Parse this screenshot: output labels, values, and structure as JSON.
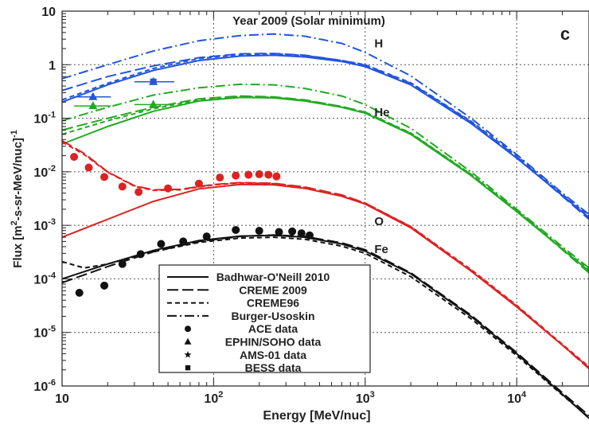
{
  "chart_data": {
    "type": "line",
    "title": "Year 2009 (Solar minimum)",
    "panel_label": "c",
    "xlabel": "Energy [MeV/nuc]",
    "ylabel": "Flux [m",
    "ylabel_sup1": "2",
    "ylabel_mid": "-s-sr-MeV/nuc]",
    "ylabel_sup2": "-1",
    "xscale": "log",
    "yscale": "log",
    "xlim": [
      10,
      30000
    ],
    "ylim": [
      1e-06,
      10
    ],
    "grid": true,
    "legend_position": "bottom-left",
    "x_ticks": [
      {
        "value": 10,
        "base": "10",
        "exp": ""
      },
      {
        "value": 100,
        "base": "10",
        "exp": "2"
      },
      {
        "value": 1000,
        "base": "10",
        "exp": "3"
      },
      {
        "value": 10000,
        "base": "10",
        "exp": "4"
      }
    ],
    "y_ticks": [
      {
        "value": 10,
        "base": "10",
        "exp": ""
      },
      {
        "value": 1,
        "base": "1",
        "exp": ""
      },
      {
        "value": 0.1,
        "base": "10",
        "exp": "-1"
      },
      {
        "value": 0.01,
        "base": "10",
        "exp": "-2"
      },
      {
        "value": 0.001,
        "base": "10",
        "exp": "-3"
      },
      {
        "value": 0.0001,
        "base": "10",
        "exp": "-4"
      },
      {
        "value": 1e-05,
        "base": "10",
        "exp": "-5"
      },
      {
        "value": 1e-06,
        "base": "10",
        "exp": "-6"
      }
    ],
    "species": [
      {
        "label": "H",
        "color": "#2255dd",
        "label_x": 1150,
        "label_y": 2.5,
        "series": [
          {
            "model": "Badhwar-O'Neill 2010",
            "style": "solid",
            "x": [
              10,
              20,
              40,
              80,
              150,
              250,
              400,
              700,
              1000,
              2000,
              5000,
              10000,
              20000,
              30000
            ],
            "y": [
              0.2,
              0.42,
              0.78,
              1.2,
              1.45,
              1.5,
              1.4,
              1.15,
              0.92,
              0.42,
              0.08,
              0.018,
              0.0036,
              0.0014
            ]
          },
          {
            "model": "CREME 2009",
            "style": "long-dash",
            "x": [
              10,
              20,
              40,
              80,
              150,
              250,
              400,
              700,
              1000,
              2000,
              5000,
              10000,
              20000,
              30000
            ],
            "y": [
              0.33,
              0.6,
              0.95,
              1.35,
              1.6,
              1.62,
              1.5,
              1.2,
              0.98,
              0.45,
              0.085,
              0.019,
              0.0035,
              0.0013
            ]
          },
          {
            "model": "CREME96",
            "style": "short-dash",
            "x": [
              10,
              20,
              40,
              80,
              150,
              250,
              400,
              700,
              1000,
              2000,
              5000,
              10000,
              20000,
              30000
            ],
            "y": [
              0.22,
              0.45,
              0.85,
              1.3,
              1.55,
              1.6,
              1.48,
              1.2,
              1.0,
              0.46,
              0.088,
              0.02,
              0.0038,
              0.0015
            ]
          },
          {
            "model": "Burger-Usoskin",
            "style": "dash-dot",
            "x": [
              10,
              20,
              40,
              80,
              150,
              250,
              400,
              700,
              1000,
              2000,
              5000,
              10000,
              20000,
              30000
            ],
            "y": [
              0.55,
              1.0,
              1.8,
              2.8,
              3.5,
              3.75,
              3.4,
              2.5,
              1.7,
              0.62,
              0.1,
              0.021,
              0.004,
              0.0016
            ]
          }
        ],
        "points": [
          {
            "set": "EPHIN/SOHO data",
            "marker": "triangle",
            "x": [
              16,
              40
            ],
            "y": [
              0.25,
              0.48
            ],
            "xerr_low": [
              12,
              30
            ],
            "xerr_high": [
              21,
              55
            ]
          },
          {
            "set": "BESS data",
            "marker": "square",
            "x": [
              40
            ],
            "y": [
              0.48
            ]
          }
        ]
      },
      {
        "label": "He",
        "color": "#22aa22",
        "label_x": 1150,
        "label_y": 0.13,
        "series": [
          {
            "model": "Badhwar-O'Neill 2010",
            "style": "solid",
            "x": [
              10,
              20,
              40,
              80,
              150,
              250,
              400,
              700,
              1000,
              2000,
              5000,
              10000,
              20000,
              30000
            ],
            "y": [
              0.033,
              0.07,
              0.135,
              0.21,
              0.245,
              0.24,
              0.21,
              0.16,
              0.125,
              0.05,
              0.0085,
              0.0018,
              0.00036,
              0.00014
            ]
          },
          {
            "model": "CREME 2009",
            "style": "long-dash",
            "x": [
              10,
              20,
              40,
              80,
              150,
              250,
              400,
              700,
              1000,
              2000,
              5000,
              10000,
              20000,
              30000
            ],
            "y": [
              0.06,
              0.1,
              0.16,
              0.23,
              0.26,
              0.25,
              0.22,
              0.165,
              0.13,
              0.052,
              0.0088,
              0.0019,
              0.00035,
              0.00013
            ]
          },
          {
            "model": "CREME96",
            "style": "short-dash",
            "x": [
              10,
              20,
              40,
              80,
              150,
              250,
              400,
              700,
              1000,
              2000,
              5000,
              10000,
              20000,
              30000
            ],
            "y": [
              0.05,
              0.09,
              0.15,
              0.22,
              0.255,
              0.245,
              0.215,
              0.165,
              0.13,
              0.053,
              0.009,
              0.0019,
              0.00037,
              0.00015
            ]
          },
          {
            "model": "Burger-Usoskin",
            "style": "dash-dot",
            "x": [
              10,
              20,
              40,
              80,
              150,
              250,
              400,
              700,
              1000,
              2000,
              5000,
              10000,
              20000,
              30000
            ],
            "y": [
              0.09,
              0.16,
              0.27,
              0.37,
              0.43,
              0.42,
              0.36,
              0.26,
              0.18,
              0.065,
              0.01,
              0.002,
              0.0004,
              0.00016
            ]
          }
        ],
        "points": [
          {
            "set": "EPHIN/SOHO data",
            "marker": "triangle",
            "x": [
              16,
              40
            ],
            "y": [
              0.17,
              0.18
            ],
            "xerr_low": [
              12,
              30
            ],
            "xerr_high": [
              21,
              55
            ]
          }
        ]
      },
      {
        "label": "O",
        "color": "#dd2222",
        "label_x": 1150,
        "label_y": 0.0012,
        "series": [
          {
            "model": "Badhwar-O'Neill 2010",
            "style": "solid",
            "x": [
              10,
              20,
              40,
              80,
              150,
              250,
              400,
              700,
              1000,
              2000,
              5000,
              10000,
              20000,
              30000
            ],
            "y": [
              0.0006,
              0.0013,
              0.0028,
              0.0048,
              0.0058,
              0.0057,
              0.0049,
              0.0035,
              0.0025,
              0.0009,
              0.00014,
              3e-05,
              5.8e-06,
              2.2e-06
            ]
          },
          {
            "model": "CREME 2009",
            "style": "long-dash",
            "x": [
              10,
              14,
              20,
              30,
              40,
              60,
              100,
              150,
              250,
              400,
              700,
              1000,
              2000,
              5000,
              10000,
              20000,
              30000
            ],
            "y": [
              0.038,
              0.022,
              0.01,
              0.0055,
              0.0046,
              0.0047,
              0.0058,
              0.0063,
              0.0061,
              0.0052,
              0.0037,
              0.0026,
              0.00094,
              0.000145,
              3.1e-05,
              5.8e-06,
              2.1e-06
            ]
          },
          {
            "model": "CREME96",
            "style": "short-dash",
            "x": [
              10,
              14,
              20,
              30,
              40,
              60,
              100,
              150,
              250,
              400,
              700,
              1000,
              2000,
              5000,
              10000,
              20000,
              30000
            ],
            "y": [
              0.036,
              0.021,
              0.0098,
              0.0054,
              0.0045,
              0.0046,
              0.0057,
              0.0062,
              0.006,
              0.0051,
              0.0036,
              0.0026,
              0.00095,
              0.00015,
              3.2e-05,
              6e-06,
              2.3e-06
            ]
          }
        ],
        "points": [
          {
            "set": "ACE data",
            "marker": "circle",
            "x": [
              12,
              15,
              19,
              25,
              32,
              50,
              80,
              110,
              140,
              170,
              200,
              230,
              260
            ],
            "y": [
              0.019,
              0.012,
              0.008,
              0.0053,
              0.0042,
              0.0049,
              0.006,
              0.0078,
              0.0085,
              0.0088,
              0.009,
              0.0088,
              0.0082
            ]
          }
        ]
      },
      {
        "label": "Fe",
        "color": "#111111",
        "label_x": 1150,
        "label_y": 0.00036,
        "series": [
          {
            "model": "Badhwar-O'Neill 2010",
            "style": "solid",
            "x": [
              10,
              20,
              40,
              80,
              150,
              250,
              400,
              700,
              1000,
              2000,
              5000,
              10000,
              20000,
              30000
            ],
            "y": [
              0.0001,
              0.00019,
              0.00034,
              0.00052,
              0.00063,
              0.00065,
              0.0006,
              0.00045,
              0.00033,
              0.000125,
              2e-05,
              4e-06,
              7e-07,
              2.5e-07
            ]
          },
          {
            "model": "CREME 2009",
            "style": "long-dash",
            "x": [
              10,
              20,
              40,
              80,
              150,
              250,
              400,
              700,
              1000,
              2000,
              5000,
              10000,
              20000,
              30000
            ],
            "y": [
              8.5e-05,
              0.00017,
              0.00032,
              0.0005,
              0.00062,
              0.00066,
              0.00062,
              0.00047,
              0.00035,
              0.00013,
              2.1e-05,
              4.2e-06,
              7.5e-07,
              2.8e-07
            ]
          },
          {
            "model": "CREME96",
            "style": "short-dash",
            "x": [
              10,
              14,
              20,
              40,
              80,
              150,
              250,
              400,
              700,
              1000,
              2000,
              5000,
              10000,
              20000,
              30000
            ],
            "y": [
              0.00021,
              0.00016,
              0.00019,
              0.00032,
              0.00048,
              0.00058,
              0.0006,
              0.00055,
              0.00041,
              0.0003,
              0.00011,
              1.8e-05,
              3.7e-06,
              6.8e-07,
              2.6e-07
            ]
          }
        ],
        "points": [
          {
            "set": "ACE data",
            "marker": "circle",
            "x": [
              13,
              19,
              25,
              33,
              45,
              63,
              90,
              140,
              200,
              270,
              330,
              380,
              430
            ],
            "y": [
              5.5e-05,
              7.5e-05,
              0.00019,
              0.00029,
              0.00045,
              0.0005,
              0.00062,
              0.00082,
              0.00079,
              0.00075,
              0.00077,
              0.00071,
              0.00065
            ]
          }
        ]
      }
    ],
    "legend": [
      {
        "label": "Badhwar-O'Neill 2010",
        "kind": "line",
        "style": "solid"
      },
      {
        "label": "CREME 2009",
        "kind": "line",
        "style": "long-dash"
      },
      {
        "label": "CREME96",
        "kind": "line",
        "style": "short-dash"
      },
      {
        "label": "Burger-Usoskin",
        "kind": "line",
        "style": "dash-dot"
      },
      {
        "label": "ACE data",
        "kind": "marker",
        "marker": "circle"
      },
      {
        "label": "EPHIN/SOHO data",
        "kind": "marker",
        "marker": "triangle"
      },
      {
        "label": "AMS-01 data",
        "kind": "marker",
        "marker": "star"
      },
      {
        "label": "BESS data",
        "kind": "marker",
        "marker": "square"
      }
    ]
  }
}
